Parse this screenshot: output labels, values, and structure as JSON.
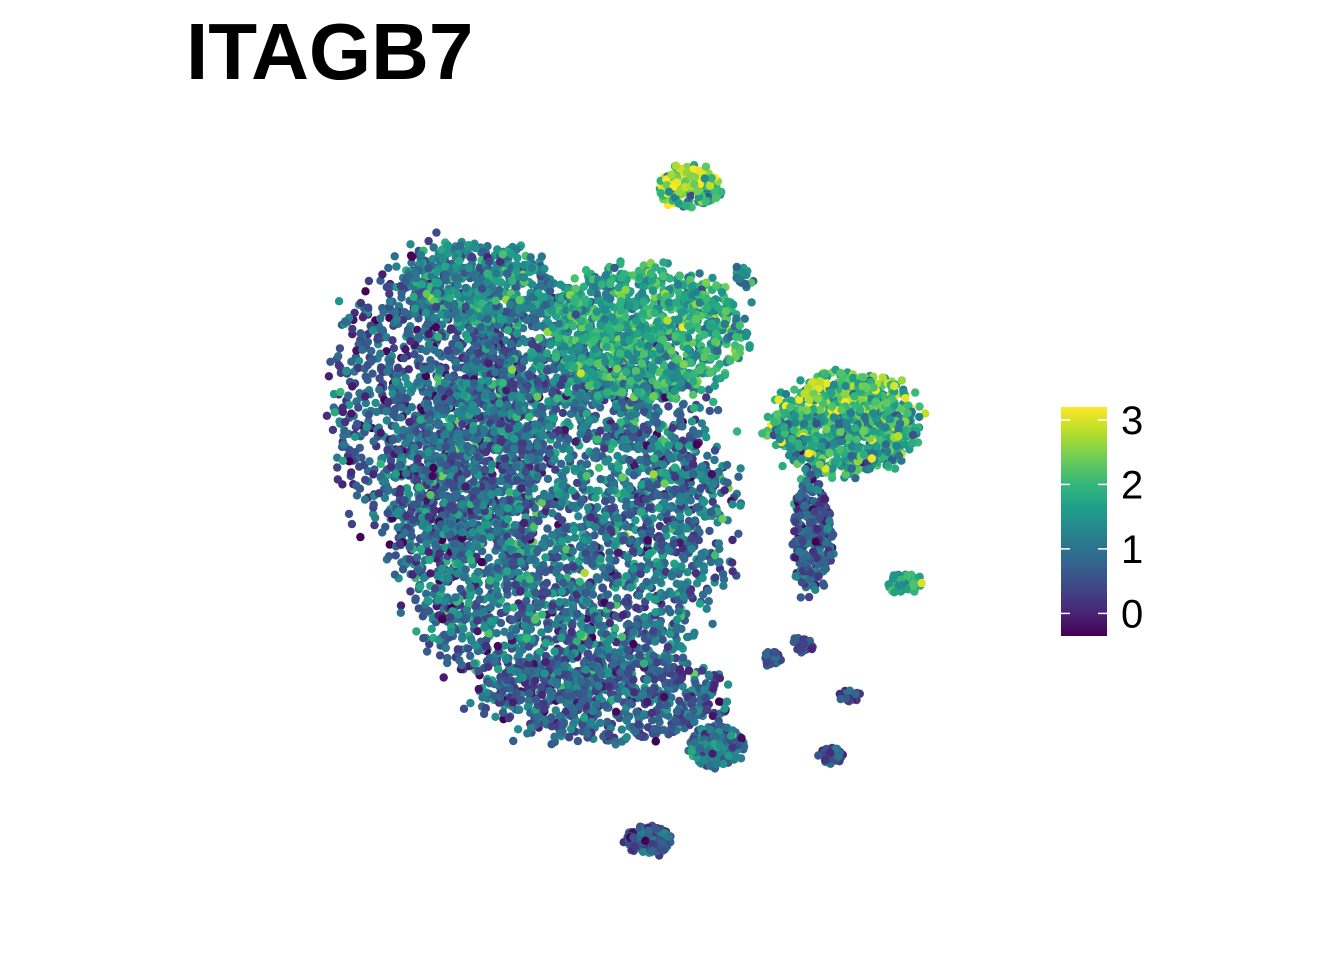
{
  "chart_data": {
    "type": "scatter",
    "title": "ITAGB7",
    "xlabel": "",
    "ylabel": "",
    "axes_visible": false,
    "grid": false,
    "legend": {
      "type": "colorbar",
      "placement": "right",
      "range": [
        -0.35,
        3.2
      ],
      "ticks": [
        0,
        1,
        2,
        3
      ],
      "tick_labels": [
        "0",
        "1",
        "2",
        "3"
      ]
    },
    "colormap": [
      "#440154",
      "#482878",
      "#3e4a89",
      "#31688e",
      "#26828e",
      "#1f9e89",
      "#35b779",
      "#6ece58",
      "#b5de2b",
      "#fde725"
    ],
    "clusters": [
      {
        "id": "main-left",
        "cx": -4.2,
        "cy": 1.8,
        "rx": 2.4,
        "ry": 3.2,
        "n": 1300,
        "mean": 0.7,
        "sd": 0.5
      },
      {
        "id": "main-body",
        "cx": -1.6,
        "cy": -0.4,
        "rx": 3.6,
        "ry": 4.4,
        "n": 3400,
        "mean": 0.95,
        "sd": 0.55
      },
      {
        "id": "main-top-right",
        "cx": 0.2,
        "cy": 3.4,
        "rx": 2.2,
        "ry": 1.4,
        "n": 900,
        "mean": 1.75,
        "sd": 0.45
      },
      {
        "id": "main-top-left",
        "cx": -3.4,
        "cy": 4.4,
        "rx": 1.6,
        "ry": 0.9,
        "n": 450,
        "mean": 1.25,
        "sd": 0.5
      },
      {
        "id": "main-bottom",
        "cx": -0.6,
        "cy": -4.4,
        "rx": 2.6,
        "ry": 1.0,
        "n": 600,
        "mean": 0.7,
        "sd": 0.45
      },
      {
        "id": "top-island",
        "cx": 1.2,
        "cy": 6.5,
        "rx": 0.7,
        "ry": 0.45,
        "n": 180,
        "mean": 2.2,
        "sd": 0.75
      },
      {
        "id": "right-island",
        "cx": 4.6,
        "cy": 1.4,
        "rx": 1.6,
        "ry": 1.1,
        "n": 900,
        "mean": 1.7,
        "sd": 0.6
      },
      {
        "id": "right-stem",
        "cx": 3.9,
        "cy": -1.0,
        "rx": 0.45,
        "ry": 1.2,
        "n": 260,
        "mean": 0.7,
        "sd": 0.45
      },
      {
        "id": "small-right",
        "cx": 5.9,
        "cy": -2.0,
        "rx": 0.4,
        "ry": 0.22,
        "n": 60,
        "mean": 1.8,
        "sd": 0.4
      },
      {
        "id": "bottom-right-blob",
        "cx": 1.8,
        "cy": -5.5,
        "rx": 0.6,
        "ry": 0.45,
        "n": 220,
        "mean": 1.0,
        "sd": 0.45
      },
      {
        "id": "bottom-blob",
        "cx": 0.3,
        "cy": -7.5,
        "rx": 0.5,
        "ry": 0.3,
        "n": 140,
        "mean": 0.5,
        "sd": 0.4
      },
      {
        "id": "far-bottom-right",
        "cx": 4.3,
        "cy": -5.7,
        "rx": 0.25,
        "ry": 0.18,
        "n": 50,
        "mean": 0.5,
        "sd": 0.35
      },
      {
        "id": "tiny-top",
        "cx": 2.4,
        "cy": 4.6,
        "rx": 0.25,
        "ry": 0.25,
        "n": 20,
        "mean": 1.3,
        "sd": 0.4
      },
      {
        "id": "tiny-mid",
        "cx": 3.0,
        "cy": -3.6,
        "rx": 0.2,
        "ry": 0.18,
        "n": 25,
        "mean": 0.4,
        "sd": 0.3
      },
      {
        "id": "tiny-mid-2",
        "cx": 3.7,
        "cy": -3.3,
        "rx": 0.2,
        "ry": 0.25,
        "n": 20,
        "mean": 0.4,
        "sd": 0.3
      },
      {
        "id": "tiny-right-bottom",
        "cx": 4.7,
        "cy": -4.4,
        "rx": 0.25,
        "ry": 0.12,
        "n": 20,
        "mean": 0.6,
        "sd": 0.35
      }
    ],
    "xlim": [
      -9.5,
      8.0
    ],
    "ylim": [
      -9.0,
      7.5
    ]
  }
}
